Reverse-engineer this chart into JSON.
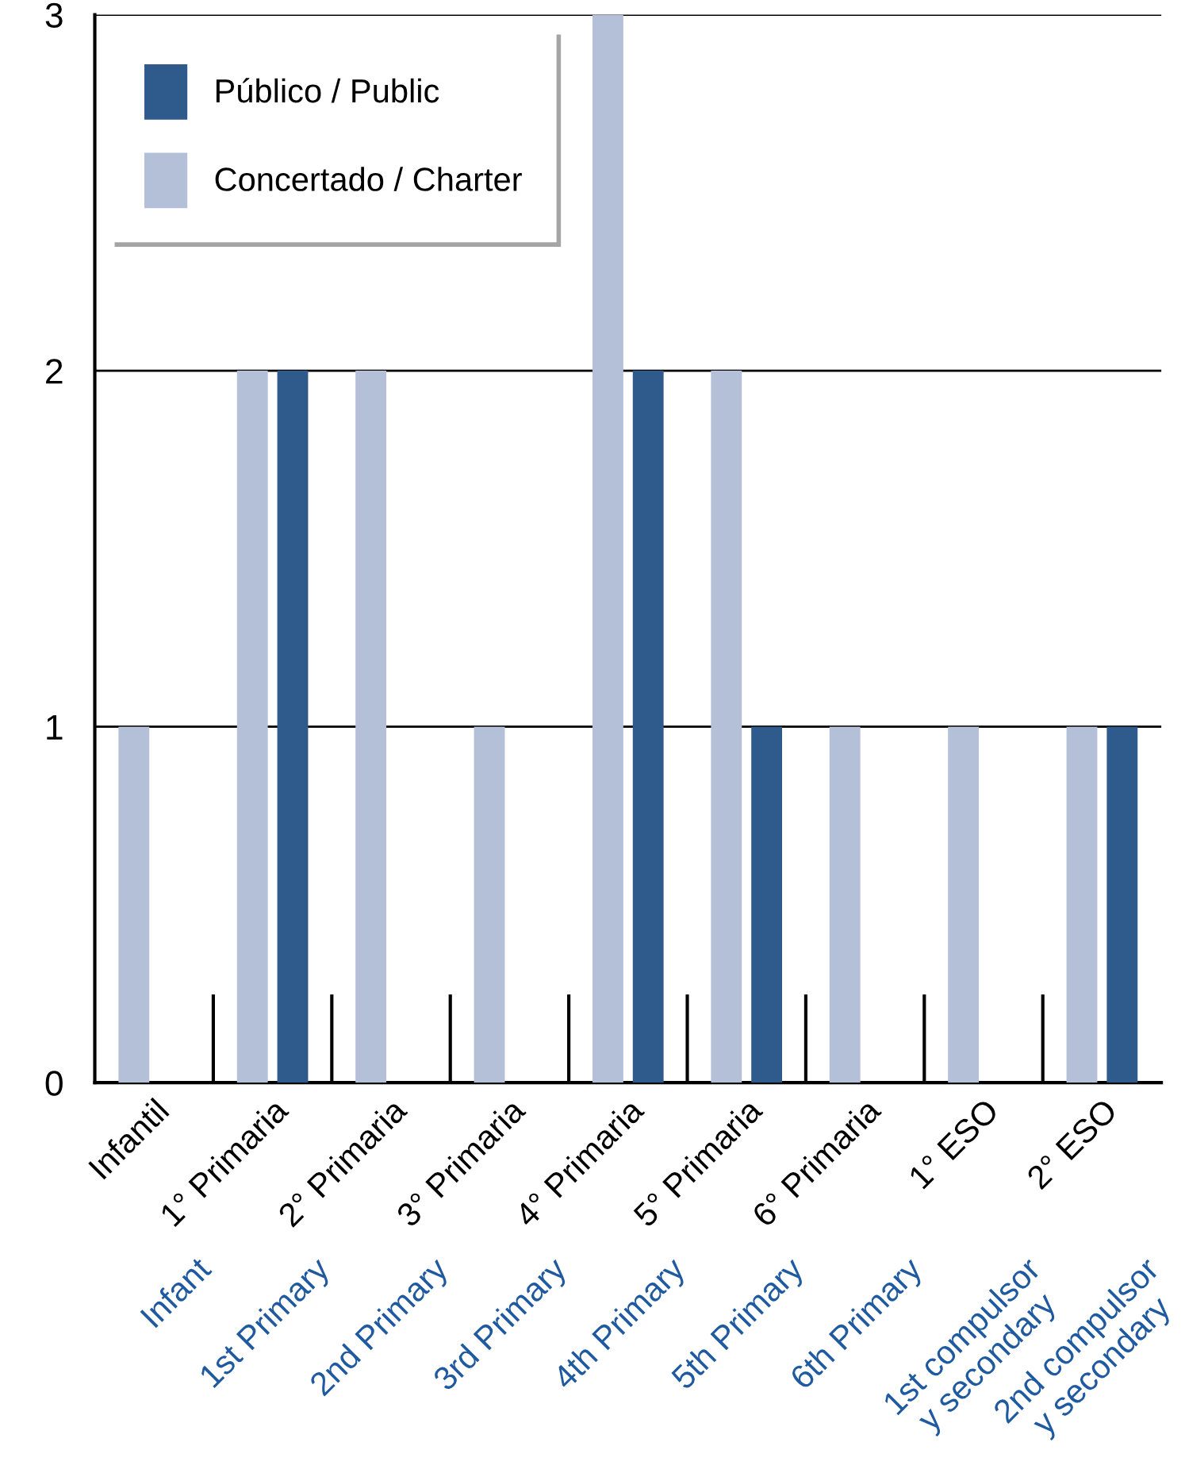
{
  "chart_data": {
    "type": "bar",
    "categories": [
      "Infantil\nInfant",
      "1° Primaria\n1st Primary",
      "2° Primaria\n2nd Primary",
      "3° Primaria\n3rd Primary",
      "4° Primaria\n4th Primary",
      "5° Primaria\n5th Primary",
      "6° Primaria\n6th Primary",
      "1° ESO\n1st compulsor\ny secondary",
      "2° ESO\n2nd compulsor\ny secondary"
    ],
    "series": [
      {
        "name": "Público / Public",
        "color": "#2e5a8c",
        "values": [
          null,
          2,
          null,
          null,
          2,
          1,
          null,
          null,
          1
        ]
      },
      {
        "name": "Concertado / Charter",
        "color": "#b4bfd8",
        "values": [
          1,
          2,
          2,
          1,
          3,
          2,
          1,
          1,
          1
        ]
      }
    ],
    "ylim": [
      0,
      3
    ],
    "yticks": [
      0,
      1,
      2,
      3
    ],
    "grid": "y",
    "legend": "top left"
  }
}
